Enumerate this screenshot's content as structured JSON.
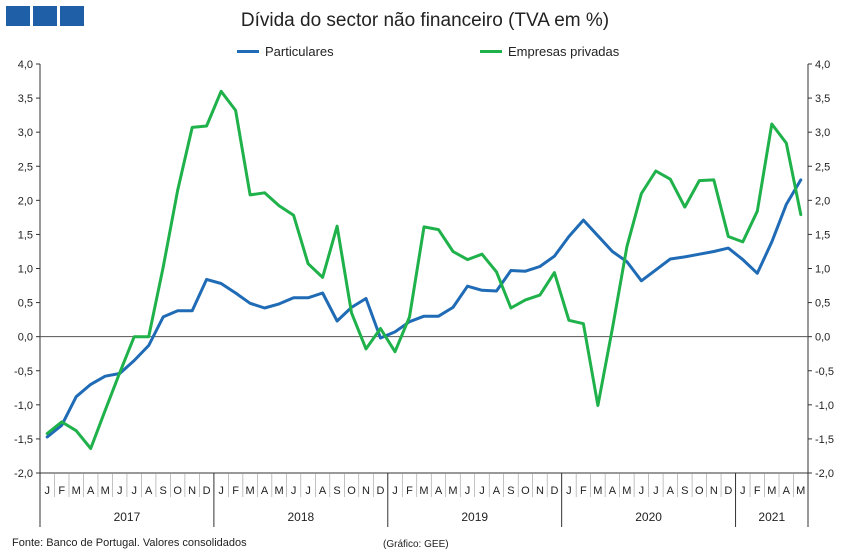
{
  "brand": {
    "colors": [
      "#1f5fa8",
      "#1f5fa8",
      "#1f5fa8"
    ]
  },
  "chart_data": {
    "type": "line",
    "title": "Dívida do sector não financeiro (TVA em %)",
    "ylim": [
      -2.0,
      4.0
    ],
    "y_ticks": [
      "4,0",
      "3,5",
      "3,0",
      "2,5",
      "2,0",
      "1,5",
      "1,0",
      "0,5",
      "0,0",
      "-0,5",
      "-1,0",
      "-1,5",
      "-2,0"
    ],
    "y_tick_values": [
      4.0,
      3.5,
      3.0,
      2.5,
      2.0,
      1.5,
      1.0,
      0.5,
      0.0,
      -0.5,
      -1.0,
      -1.5,
      -2.0
    ],
    "grid": false,
    "legend_position": "top",
    "months": [
      "J",
      "F",
      "M",
      "A",
      "M",
      "J",
      "J",
      "A",
      "S",
      "O",
      "N",
      "D",
      "J",
      "F",
      "M",
      "A",
      "M",
      "J",
      "J",
      "A",
      "S",
      "O",
      "N",
      "D",
      "J",
      "F",
      "M",
      "A",
      "M",
      "J",
      "J",
      "A",
      "S",
      "O",
      "N",
      "D",
      "J",
      "F",
      "M",
      "A",
      "M",
      "J",
      "J",
      "A",
      "S",
      "O",
      "N",
      "D",
      "J",
      "F",
      "M",
      "A",
      "M"
    ],
    "years": [
      {
        "label": "2017",
        "start": 0,
        "count": 12
      },
      {
        "label": "2018",
        "start": 12,
        "count": 12
      },
      {
        "label": "2019",
        "start": 24,
        "count": 12
      },
      {
        "label": "2020",
        "start": 36,
        "count": 12
      },
      {
        "label": "2021",
        "start": 48,
        "count": 5
      }
    ],
    "series": [
      {
        "name": "Particulares",
        "color": "#1f6bb5",
        "values": [
          -1.47,
          -1.3,
          -0.88,
          -0.7,
          -0.58,
          -0.54,
          -0.35,
          -0.13,
          0.29,
          0.38,
          0.38,
          0.84,
          0.78,
          0.64,
          0.49,
          0.42,
          0.48,
          0.57,
          0.57,
          0.64,
          0.23,
          0.43,
          0.56,
          -0.02,
          0.07,
          0.22,
          0.3,
          0.3,
          0.43,
          0.74,
          0.68,
          0.67,
          0.97,
          0.96,
          1.03,
          1.18,
          1.47,
          1.71,
          1.48,
          1.25,
          1.1,
          0.82,
          0.98,
          1.14,
          1.17,
          1.21,
          1.25,
          1.3,
          1.13,
          0.93,
          1.39,
          1.94,
          2.3
        ]
      },
      {
        "name": "Empresas privadas",
        "color": "#1fb14a",
        "values": [
          -1.42,
          -1.25,
          -1.38,
          -1.64,
          -1.08,
          -0.53,
          0.0,
          0.0,
          1.02,
          2.15,
          3.07,
          3.09,
          3.6,
          3.32,
          2.08,
          2.11,
          1.92,
          1.78,
          1.07,
          0.87,
          1.62,
          0.35,
          -0.18,
          0.12,
          -0.22,
          0.29,
          1.61,
          1.57,
          1.25,
          1.13,
          1.21,
          0.95,
          0.42,
          0.54,
          0.61,
          0.94,
          0.24,
          0.19,
          -1.01,
          0.12,
          1.32,
          2.1,
          2.43,
          2.31,
          1.9,
          2.29,
          2.3,
          1.47,
          1.39,
          1.84,
          3.12,
          2.84,
          1.79
        ]
      }
    ]
  },
  "footer": {
    "source": "Fonte: Banco de Portugal. Valores consolidados",
    "credit": "(Gráfico: GEE)"
  }
}
